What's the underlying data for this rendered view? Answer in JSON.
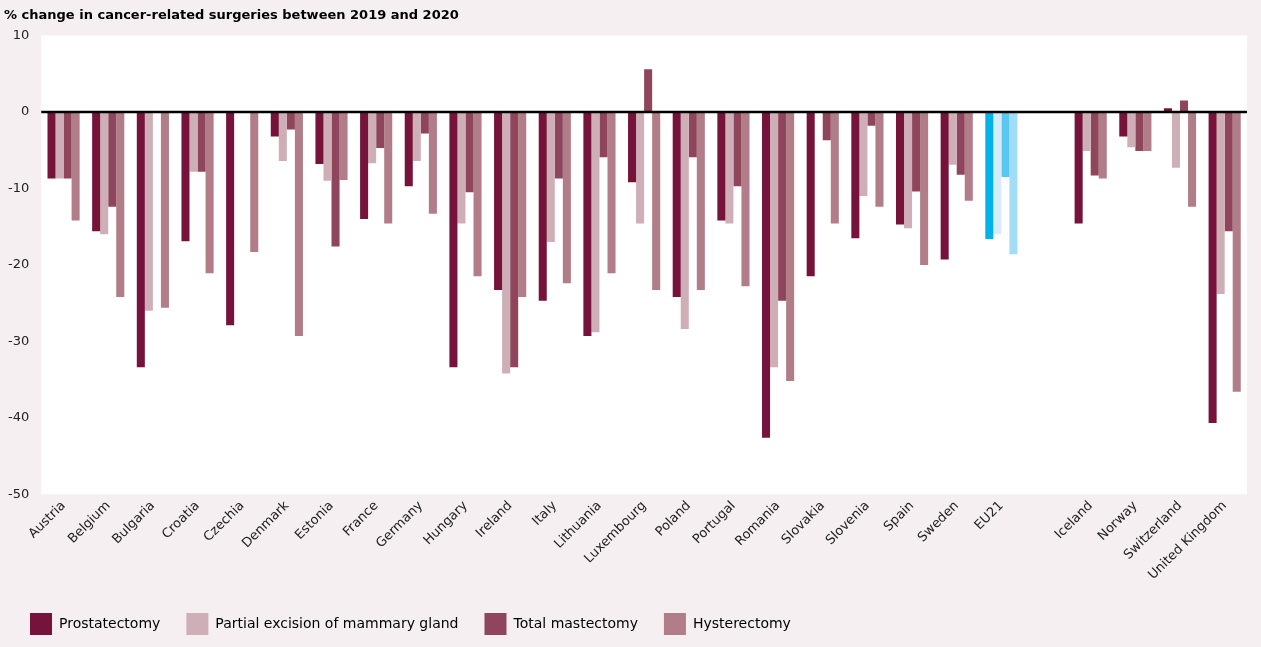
{
  "chart_data": {
    "type": "bar",
    "title": "% change in cancer-related surgeries between 2019 and 2020",
    "categories": [
      "Austria",
      "Belgium",
      "Bulgaria",
      "Croatia",
      "Czechia",
      "Denmark",
      "Estonia",
      "France",
      "Germany",
      "Hungary",
      "Ireland",
      "Italy",
      "Lithuania",
      "Luxembourg",
      "Poland",
      "Portugal",
      "Romania",
      "Slovakia",
      "Slovenia",
      "Spain",
      "Sweden",
      "EU21",
      null,
      "Iceland",
      "Norway",
      "Switzerland",
      "United Kingdom"
    ],
    "series": [
      {
        "name": "Prostatectomy",
        "color": "#76133a",
        "colors": [
          "#76133a",
          "#76133a",
          "#76133a",
          "#76133a",
          "#76133a",
          "#76133a",
          "#76133a",
          "#76133a",
          "#76133a",
          "#76133a",
          "#76133a",
          "#76133a",
          "#76133a",
          "#76133a",
          "#76133a",
          "#76133a",
          "#76133a",
          "#76133a",
          "#76133a",
          "#76133a",
          "#76133a",
          "#00b4ea",
          "#76133a",
          "#76133a",
          "#76133a",
          "#76133a",
          "#76133a"
        ],
        "values": [
          -8.7,
          -15.6,
          -33.4,
          -16.9,
          -27.9,
          -3.2,
          -6.8,
          -14.0,
          -9.7,
          -33.4,
          -23.3,
          -24.7,
          -29.3,
          -9.2,
          -24.2,
          -14.2,
          -42.6,
          -21.5,
          -16.5,
          -14.7,
          -19.3,
          -16.6,
          null,
          -14.6,
          -3.2,
          0.5,
          -40.7
        ]
      },
      {
        "name": "Partial excision of mammary gland",
        "color": "#cfafb7",
        "colors": [
          "#cfafb7",
          "#cfafb7",
          "#cfafb7",
          "#cfafb7",
          "#cfafb7",
          "#cfafb7",
          "#cfafb7",
          "#cfafb7",
          "#cfafb7",
          "#cfafb7",
          "#cfafb7",
          "#cfafb7",
          "#cfafb7",
          "#cfafb7",
          "#cfafb7",
          "#cfafb7",
          "#cfafb7",
          "#cfafb7",
          "#cfafb7",
          "#cfafb7",
          "#cfafb7",
          "#d6ecfa",
          "#cfafb7",
          "#cfafb7",
          "#cfafb7",
          "#cfafb7",
          "#cfafb7"
        ],
        "values": [
          -8.7,
          -16.0,
          -26.0,
          -7.8,
          null,
          -6.4,
          -9.0,
          -6.7,
          -6.4,
          -14.6,
          -34.2,
          -17.0,
          -28.8,
          -14.6,
          -28.4,
          -14.6,
          -33.4,
          null,
          -11.0,
          -15.2,
          -6.9,
          -16.0,
          null,
          -5.1,
          -4.6,
          -7.3,
          -23.8
        ]
      },
      {
        "name": "Total mastectomy",
        "color": "#8f455c",
        "colors": [
          "#8f455c",
          "#8f455c",
          "#8f455c",
          "#8f455c",
          "#8f455c",
          "#8f455c",
          "#8f455c",
          "#8f455c",
          "#8f455c",
          "#8f455c",
          "#8f455c",
          "#8f455c",
          "#8f455c",
          "#8f455c",
          "#8f455c",
          "#8f455c",
          "#8f455c",
          "#8f455c",
          "#8f455c",
          "#8f455c",
          "#8f455c",
          "#5ac7f0",
          "#8f455c",
          "#8f455c",
          "#8f455c",
          "#8f455c",
          "#8f455c"
        ],
        "values": [
          -8.7,
          -12.4,
          null,
          -7.8,
          null,
          -2.3,
          -17.6,
          -4.7,
          -2.8,
          -10.5,
          -33.4,
          -8.7,
          -5.9,
          5.6,
          -5.9,
          -9.7,
          -24.7,
          -3.7,
          -1.8,
          -10.4,
          -8.2,
          -8.5,
          null,
          -8.3,
          -5.1,
          1.5,
          -15.6
        ]
      },
      {
        "name": "Hysterectomy",
        "color": "#b07d89",
        "colors": [
          "#b07d89",
          "#b07d89",
          "#b07d89",
          "#b07d89",
          "#b07d89",
          "#b07d89",
          "#b07d89",
          "#b07d89",
          "#b07d89",
          "#b07d89",
          "#b07d89",
          "#b07d89",
          "#b07d89",
          "#b07d89",
          "#b07d89",
          "#b07d89",
          "#b07d89",
          "#b07d89",
          "#b07d89",
          "#b07d89",
          "#b07d89",
          "#a3dcf7",
          "#b07d89",
          "#b07d89",
          "#b07d89",
          "#b07d89",
          "#b07d89"
        ],
        "values": [
          -14.2,
          -24.2,
          -25.6,
          -21.1,
          -18.3,
          -29.3,
          -8.9,
          -14.6,
          -13.3,
          -21.5,
          -24.2,
          -22.4,
          -21.1,
          -23.3,
          -23.3,
          -22.8,
          -35.2,
          -14.6,
          -12.4,
          -20.0,
          -11.6,
          -18.6,
          null,
          -8.7,
          -5.1,
          -12.4,
          -36.6
        ]
      }
    ],
    "ylim": [
      -50,
      10
    ],
    "yticks": [
      10,
      0,
      -10,
      -20,
      -30,
      -40,
      -50
    ],
    "legend": "bottom left"
  }
}
